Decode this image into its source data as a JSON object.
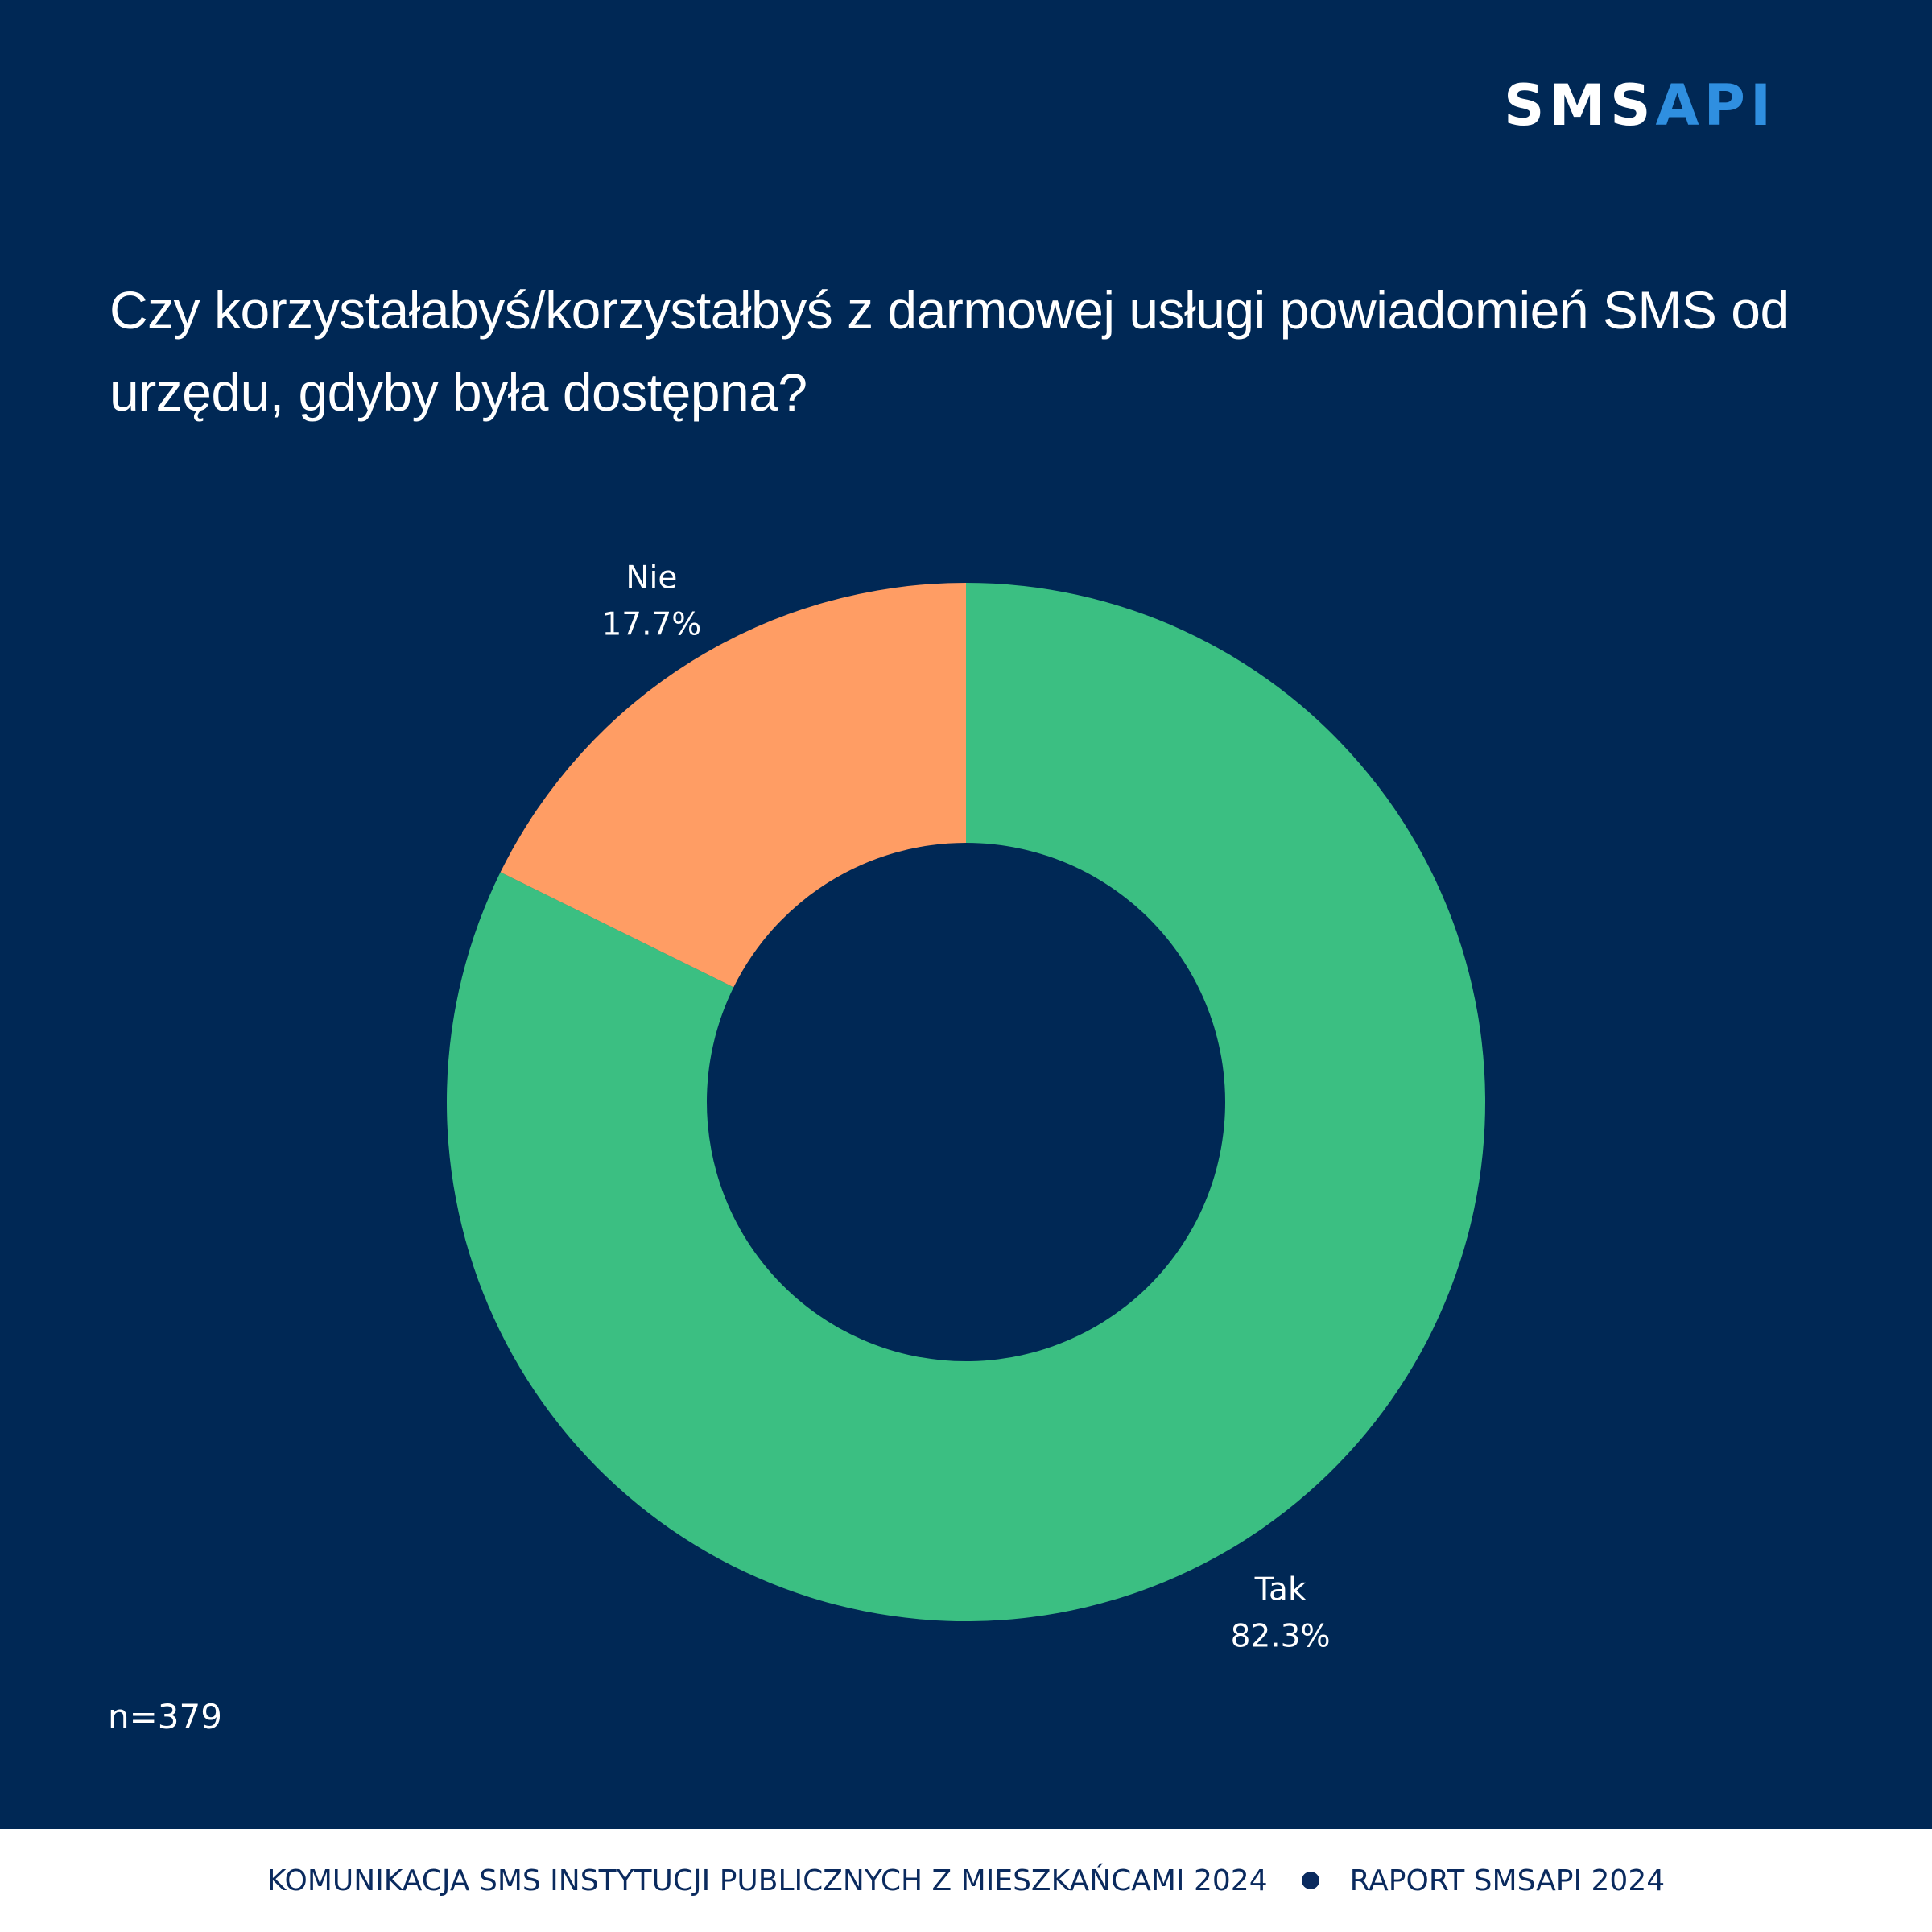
{
  "brand": {
    "logo_part1": "SMS",
    "logo_part2": "API",
    "colors": {
      "background": "#002855",
      "logo_accent": "#2f8fe0"
    }
  },
  "title": "Czy korzystałabyś/korzystałbyś z darmowej usługi powiadomień SMS od urzędu, gdyby była dostępna?",
  "note": "n=379",
  "footer": {
    "left": "KOMUNIKACJA SMS INSTYTUCJI PUBLICZNYCH Z MIESZKAŃCAMI 2024",
    "right": "RAPORT SMSAPI 2024"
  },
  "chart_data": {
    "type": "pie",
    "donut": true,
    "title": "Czy korzystałabyś/korzystałbyś z darmowej usługi powiadomień SMS od urzędu, gdyby była dostępna?",
    "categories": [
      "Tak",
      "Nie"
    ],
    "values": [
      82.3,
      17.7
    ],
    "value_labels": [
      "82.3%",
      "17.7%"
    ],
    "colors": [
      "#3bbf82",
      "#ff9d64"
    ],
    "start": "12 o'clock",
    "direction": "clockwise"
  }
}
